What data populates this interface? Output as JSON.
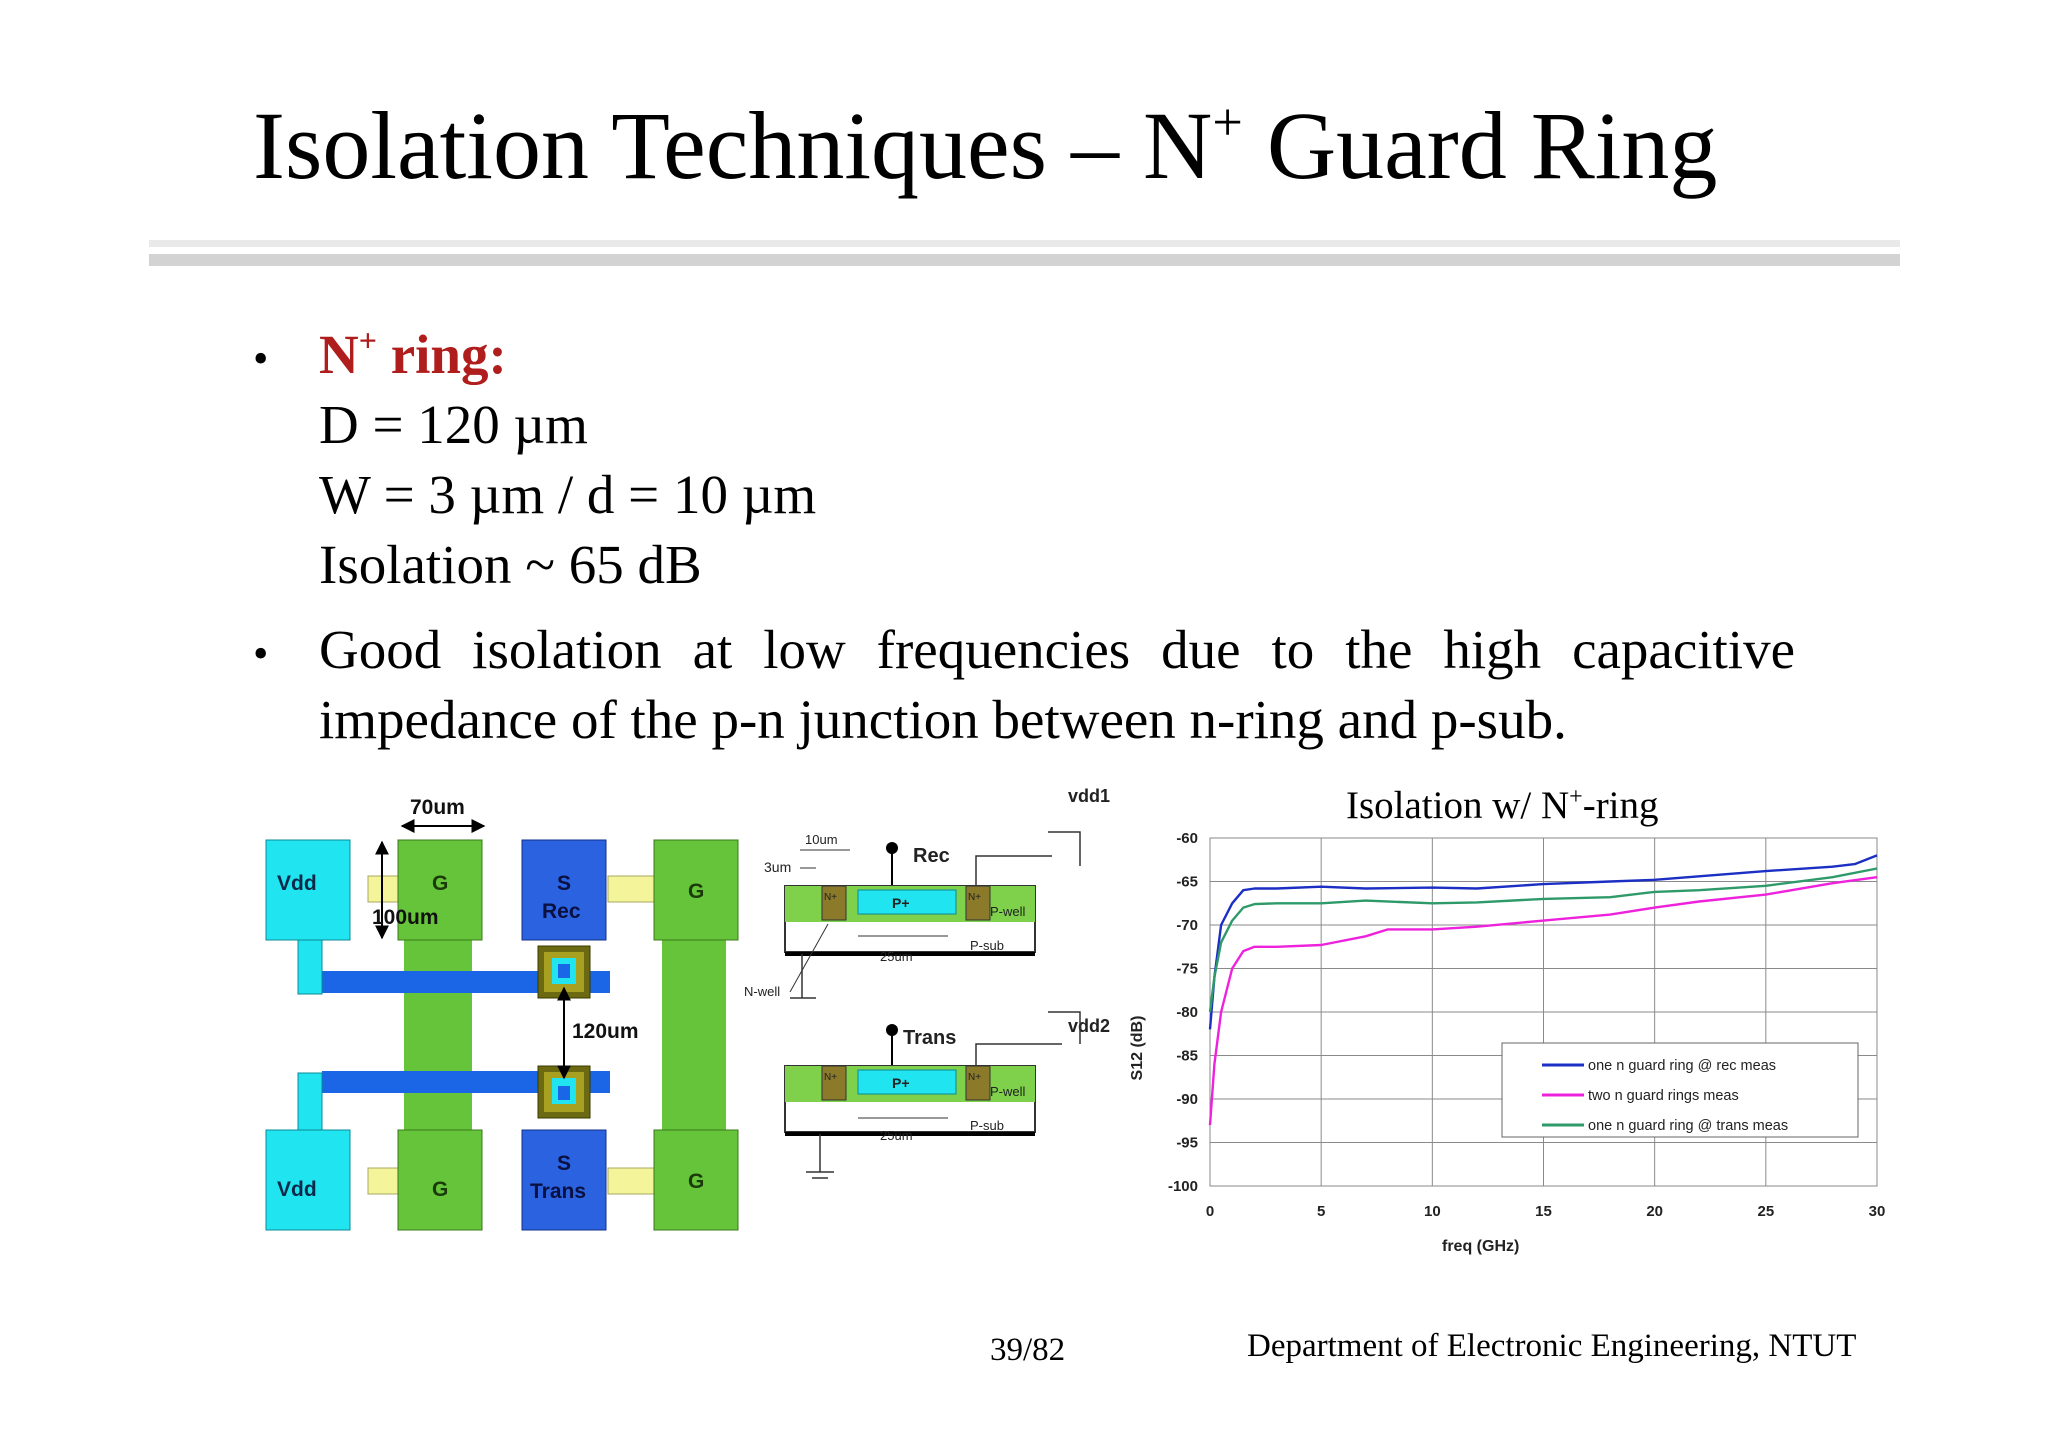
{
  "slide": {
    "title_main": "Isolation Techniques – N",
    "title_sup": "+",
    "title_rest": " Guard Ring",
    "bullet1": {
      "head": "N",
      "head_sup": "+",
      "head_rest": " ring:",
      "lines": [
        "D = 120 µm",
        "W = 3 µm / d = 10 µm",
        "Isolation ~ 65 dB"
      ]
    },
    "bullet2_line1": "Good isolation at low frequencies due to the high capacitive",
    "bullet2_line2": "impedance of the p-n junction between n-ring and p-sub.",
    "footer_page": "39/82",
    "footer_dept": "Department of Electronic Engineering, NTUT"
  },
  "layout_fig": {
    "dim_width": "70um",
    "dim_height": "100um",
    "dim_spacing": "120um",
    "vdd": "Vdd",
    "g": "G",
    "s": "S",
    "rec": "Rec",
    "trans": "Trans"
  },
  "cross_fig": {
    "vdd1": "vdd1",
    "vdd2": "vdd2",
    "rec": "Rec",
    "trans": "Trans",
    "dim_10um": "10um",
    "dim_3um": "3um",
    "dim_25um": "25um",
    "p_plus": "P+",
    "n_plus": "N+",
    "p_well": "P-well",
    "p_sub": "P-sub",
    "n_well": "N-well"
  },
  "chart_data": {
    "type": "line",
    "title_main": "Isolation w/ N",
    "title_sup": "+",
    "title_rest": "-ring",
    "xlabel": "freq (GHz)",
    "ylabel": "S12 (dB)",
    "xlim": [
      0,
      30
    ],
    "ylim": [
      -100,
      -60
    ],
    "xticks": [
      0,
      5,
      10,
      15,
      20,
      25,
      30
    ],
    "yticks": [
      -60,
      -65,
      -70,
      -75,
      -80,
      -85,
      -90,
      -95,
      -100
    ],
    "grid": true,
    "legend_position": "lower-right",
    "series": [
      {
        "name": "one n guard ring @ rec meas",
        "color": "#1c2fc4",
        "x": [
          0,
          0.2,
          0.5,
          1,
          1.5,
          2,
          3,
          5,
          7,
          10,
          12,
          15,
          18,
          20,
          22,
          25,
          28,
          29,
          30
        ],
        "y": [
          -82,
          -76,
          -70,
          -67.5,
          -66,
          -65.8,
          -65.8,
          -65.6,
          -65.8,
          -65.7,
          -65.8,
          -65.3,
          -65,
          -64.8,
          -64.4,
          -63.8,
          -63.3,
          -63,
          -62
        ]
      },
      {
        "name": "two n guard rings meas",
        "color": "#ee22dd",
        "x": [
          0,
          0.2,
          0.5,
          1,
          1.5,
          2,
          3,
          5,
          7,
          8,
          10,
          12,
          15,
          18,
          20,
          22,
          25,
          28,
          30
        ],
        "y": [
          -93,
          -86,
          -80,
          -75,
          -73,
          -72.5,
          -72.5,
          -72.3,
          -71.3,
          -70.5,
          -70.5,
          -70.2,
          -69.5,
          -68.8,
          -68,
          -67.3,
          -66.5,
          -65.2,
          -64.5
        ]
      },
      {
        "name": "one n guard ring @ trans meas",
        "color": "#2e9a6a",
        "x": [
          0,
          0.2,
          0.5,
          1,
          1.5,
          2,
          3,
          5,
          7,
          10,
          12,
          15,
          18,
          20,
          22,
          25,
          28,
          30
        ],
        "y": [
          -80,
          -76,
          -72,
          -69.5,
          -68,
          -67.6,
          -67.5,
          -67.5,
          -67.2,
          -67.5,
          -67.4,
          -67,
          -66.8,
          -66.2,
          -66,
          -65.5,
          -64.5,
          -63.5
        ]
      }
    ]
  }
}
